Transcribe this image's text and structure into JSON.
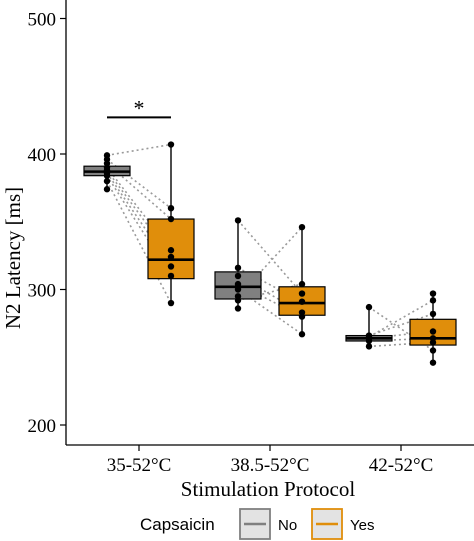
{
  "chart_data": {
    "type": "box",
    "xlabel": "Stimulation Protocol",
    "ylabel": "N2 Latency [ms]",
    "ylim": [
      200,
      520
    ],
    "yticks": [
      200,
      300,
      400,
      500
    ],
    "categories": [
      "35-52°C",
      "38.5-52°C",
      "42-52°C"
    ],
    "legend": {
      "title": "Capsaicin",
      "position": "bottom",
      "entries": [
        {
          "name": "No",
          "color": "#808080"
        },
        {
          "name": "Yes",
          "color": "#E08E0B"
        }
      ]
    },
    "grid": false,
    "connecting_lines": "dotted gray lines pair each subject's No and Yes measurement",
    "significance": [
      {
        "category": "35-52°C",
        "label": "*",
        "y": 427
      }
    ],
    "series": [
      {
        "name": "No",
        "color": "#808080",
        "boxes": [
          {
            "category": "35-52°C",
            "min": 374,
            "q1": 384,
            "median": 387,
            "q3": 391,
            "max": 399,
            "points": [
              374,
              380,
              384,
              386,
              388,
              390,
              393,
              396,
              399
            ]
          },
          {
            "category": "38.5-52°C",
            "min": 286,
            "q1": 293,
            "median": 302,
            "q3": 313,
            "max": 351,
            "points": [
              286,
              292,
              295,
              300,
              304,
              310,
              316,
              351
            ]
          },
          {
            "category": "42-52°C",
            "min": 258,
            "q1": 262,
            "median": 264,
            "q3": 266,
            "max": 287,
            "points": [
              258,
              262,
              264,
              265,
              266,
              287
            ]
          }
        ]
      },
      {
        "name": "Yes",
        "color": "#E08E0B",
        "boxes": [
          {
            "category": "35-52°C",
            "min": 290,
            "q1": 308,
            "median": 322,
            "q3": 352,
            "max": 407,
            "points": [
              290,
              310,
              317,
              324,
              329,
              352,
              360,
              407
            ]
          },
          {
            "category": "38.5-52°C",
            "min": 267,
            "q1": 281,
            "median": 290,
            "q3": 302,
            "max": 346,
            "points": [
              267,
              280,
              283,
              291,
              297,
              304,
              346
            ]
          },
          {
            "category": "42-52°C",
            "min": 246,
            "q1": 259,
            "median": 264,
            "q3": 278,
            "max": 297,
            "points": [
              246,
              255,
              261,
              264,
              269,
              282,
              292,
              297
            ]
          }
        ]
      }
    ],
    "pairs": [
      {
        "category": "35-52°C",
        "links": [
          [
            399,
            407
          ],
          [
            396,
            360
          ],
          [
            393,
            352
          ],
          [
            390,
            329
          ],
          [
            388,
            324
          ],
          [
            386,
            317
          ],
          [
            384,
            310
          ],
          [
            380,
            290
          ]
        ]
      },
      {
        "category": "38.5-52°C",
        "links": [
          [
            351,
            297
          ],
          [
            316,
            291
          ],
          [
            310,
            283
          ],
          [
            304,
            280
          ],
          [
            300,
            267
          ],
          [
            295,
            346
          ],
          [
            292,
            304
          ]
        ]
      },
      {
        "category": "42-52°C",
        "links": [
          [
            287,
            255
          ],
          [
            266,
            282
          ],
          [
            265,
            292
          ],
          [
            264,
            269
          ],
          [
            262,
            264
          ],
          [
            258,
            261
          ]
        ]
      }
    ]
  }
}
